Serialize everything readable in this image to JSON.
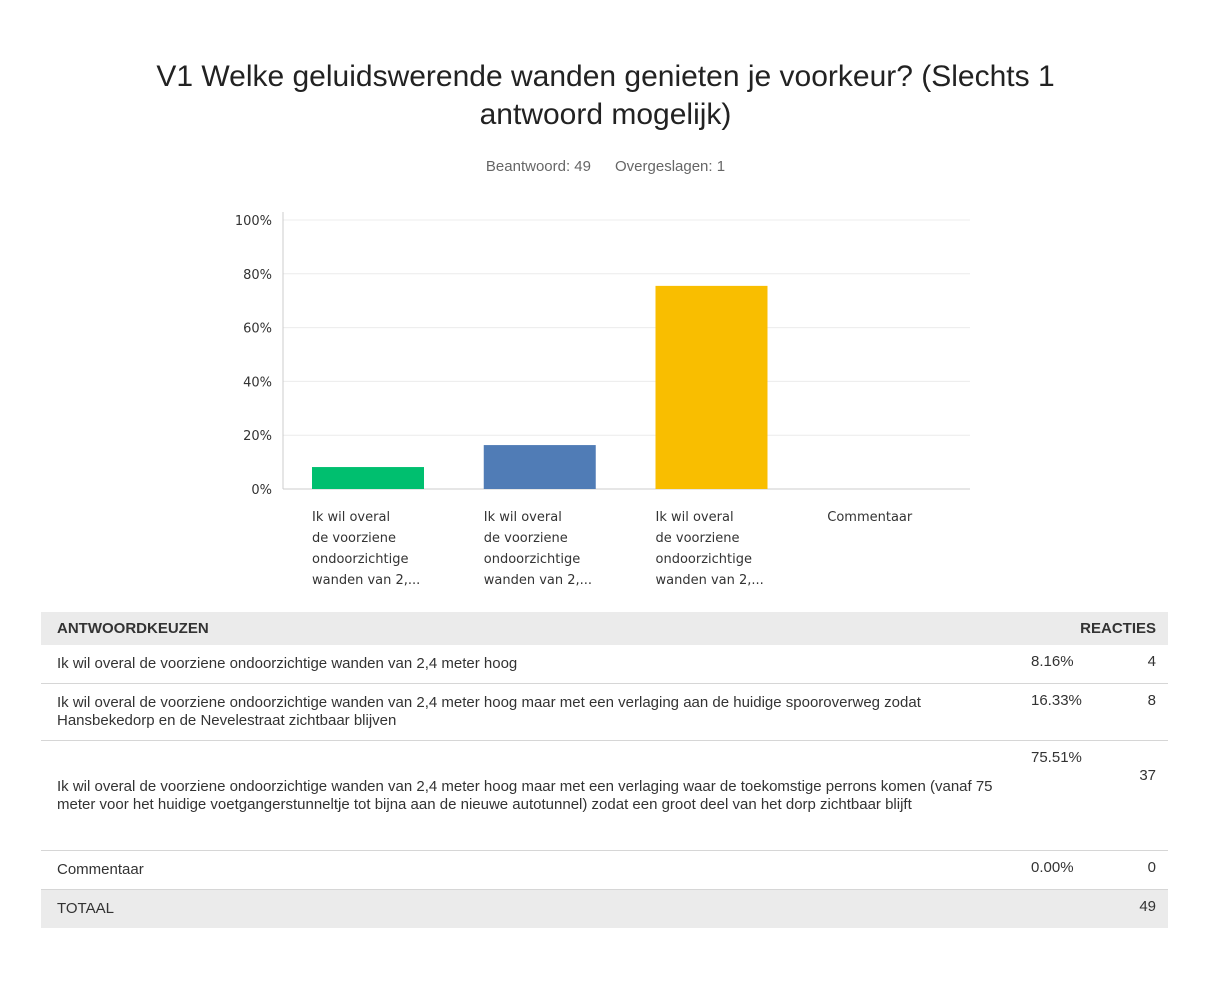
{
  "title": "V1 Welke geluidswerende wanden genieten je voorkeur? (Slechts 1 antwoord mogelijk)",
  "answered": "Beantwoord: 49",
  "skipped": "Overgeslagen: 1",
  "chart_data": {
    "type": "bar",
    "categories": [
      [
        "Ik wil overal",
        "de voorziene",
        "ondoorzichtige",
        "wanden van 2,..."
      ],
      [
        "Ik wil overal",
        "de voorziene",
        "ondoorzichtige",
        "wanden van 2,..."
      ],
      [
        "Ik wil overal",
        "de voorziene",
        "ondoorzichtige",
        "wanden van 2,..."
      ],
      [
        "Commentaar"
      ]
    ],
    "values": [
      8.16,
      16.33,
      75.51,
      0
    ],
    "colors": [
      "#00bf6f",
      "#507cb6",
      "#f9be00",
      "#6bc8cd"
    ],
    "ylim": [
      0,
      100
    ],
    "yticks": [
      {
        "value": 0,
        "label": "0%"
      },
      {
        "value": 20,
        "label": "20%"
      },
      {
        "value": 40,
        "label": "40%"
      },
      {
        "value": 60,
        "label": "60%"
      },
      {
        "value": 80,
        "label": "80%"
      },
      {
        "value": 100,
        "label": "100%"
      }
    ],
    "grid": true
  },
  "table": {
    "header": [
      "ANTWOORDKEUZEN",
      "REACTIES"
    ],
    "rows": [
      {
        "label": "Ik wil overal de voorziene ondoorzichtige wanden van 2,4 meter hoog",
        "percent": "8.16%",
        "count": 4
      },
      {
        "label": "Ik wil overal de voorziene ondoorzichtige wanden van 2,4 meter hoog maar met een verlaging  aan de huidige spooroverweg zodat Hansbekedorp en de Nevelestraat zichtbaar blijven",
        "percent": "16.33%",
        "count": 8
      },
      {
        "label": "Ik wil overal de voorziene ondoorzichtige wanden van 2,4 meter hoog maar met een verlaging waar de toekomstige perrons komen (vanaf 75 meter voor het huidige voetgangerstunneltje tot bijna aan de nieuwe autotunnel) zodat een groot deel van het dorp zichtbaar blijft",
        "percent": "75.51%",
        "count": 37
      },
      {
        "label": "Commentaar",
        "percent": "0.00%",
        "count": 0
      }
    ],
    "total": {
      "label": "TOTAAL",
      "count": 49
    }
  }
}
